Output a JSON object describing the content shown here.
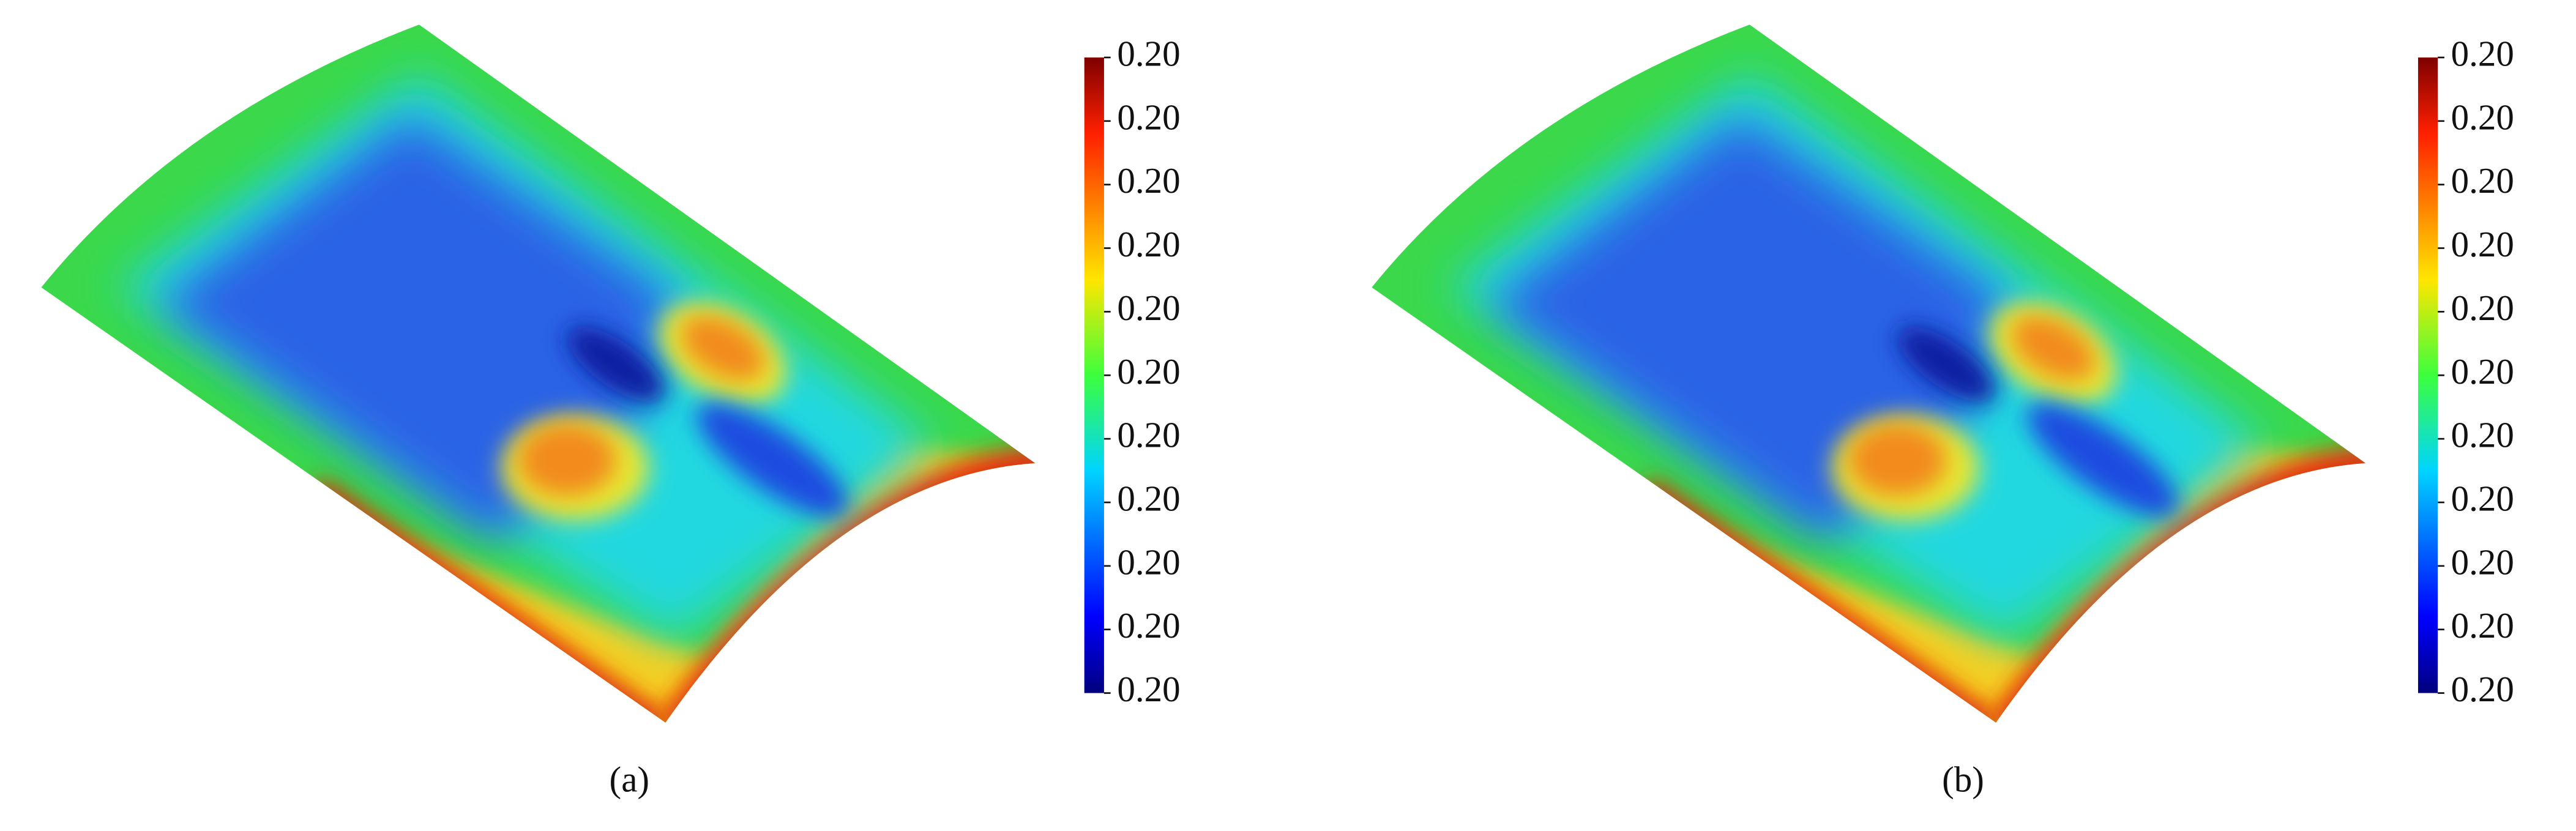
{
  "panels": [
    {
      "caption": "(a)",
      "colorbar_ticks": [
        "0.20",
        "0.20",
        "0.20",
        "0.20",
        "0.20",
        "0.20",
        "0.20",
        "0.20",
        "0.20",
        "0.20",
        "0.20"
      ]
    },
    {
      "caption": "(b)",
      "colorbar_ticks": [
        "0.20",
        "0.20",
        "0.20",
        "0.20",
        "0.20",
        "0.20",
        "0.20",
        "0.20",
        "0.20",
        "0.20",
        "0.20"
      ]
    }
  ]
}
